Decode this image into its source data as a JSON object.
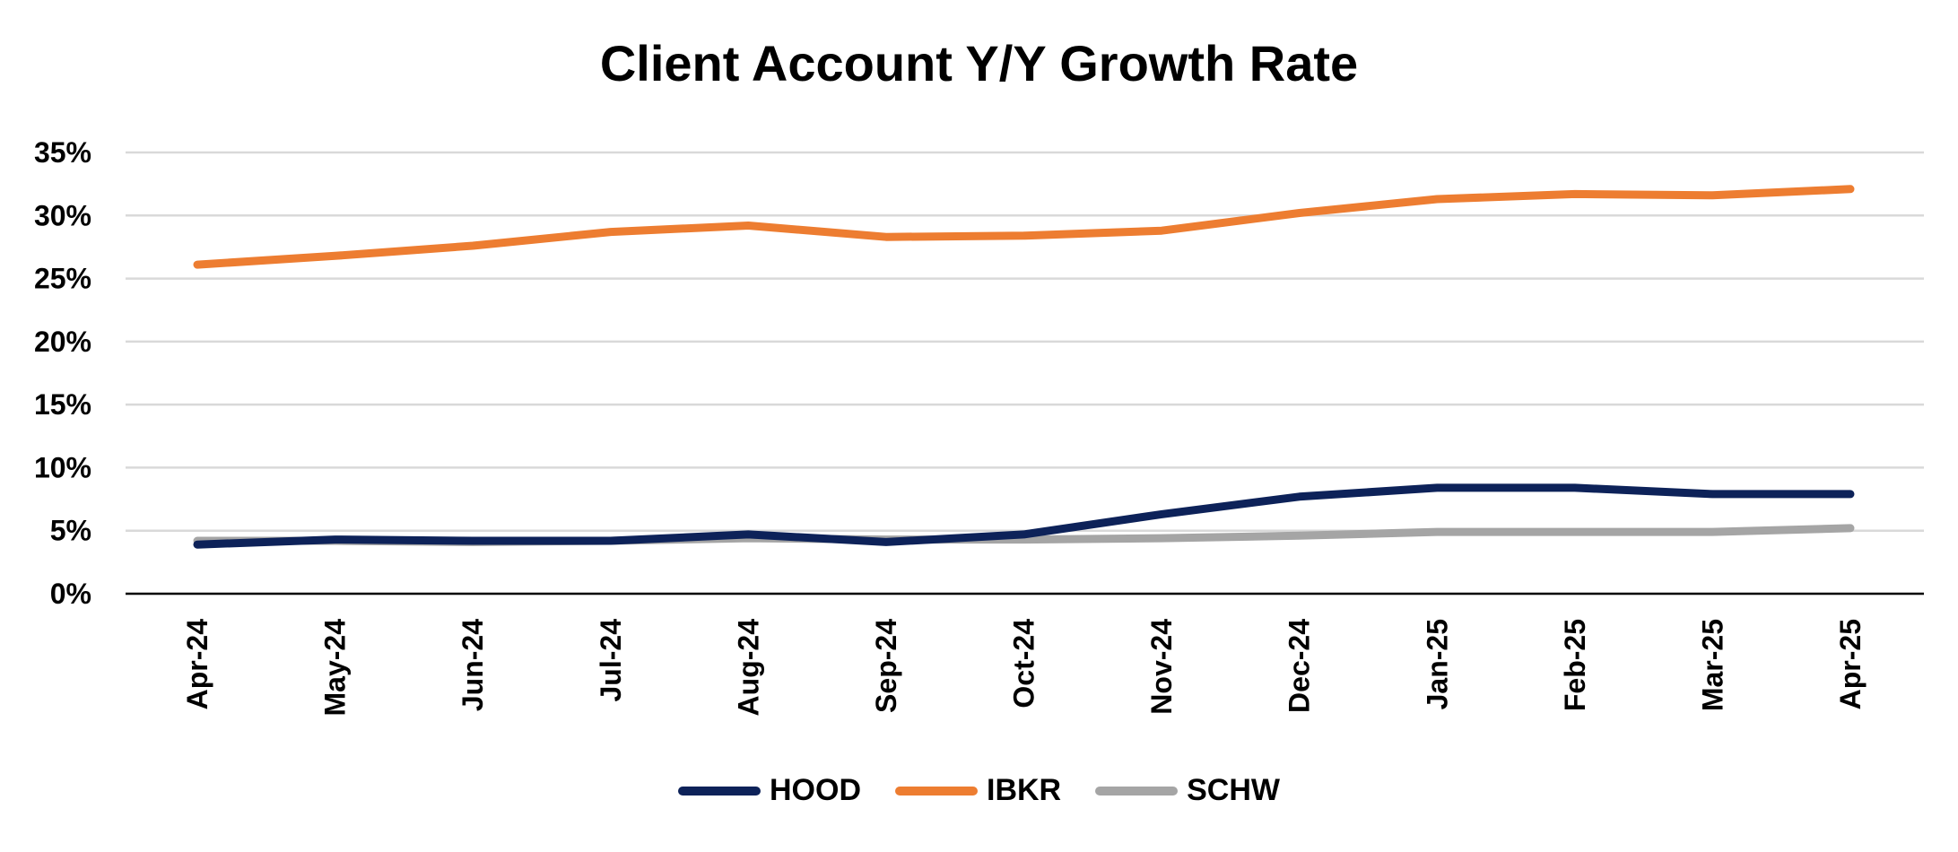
{
  "chart_data": {
    "type": "line",
    "title": "Client Account Y/Y Growth Rate",
    "xlabel": "",
    "ylabel": "",
    "ylim": [
      0,
      35
    ],
    "yticks": [
      0,
      5,
      10,
      15,
      20,
      25,
      30,
      35
    ],
    "ytick_labels": [
      "0%",
      "5%",
      "10%",
      "15%",
      "20%",
      "25%",
      "30%",
      "35%"
    ],
    "categories": [
      "Apr-24",
      "May-24",
      "Jun-24",
      "Jul-24",
      "Aug-24",
      "Sep-24",
      "Oct-24",
      "Nov-24",
      "Dec-24",
      "Jan-25",
      "Feb-25",
      "Mar-25",
      "Apr-25"
    ],
    "grid": true,
    "legend_position": "bottom",
    "series": [
      {
        "name": "HOOD",
        "color": "#0d2259",
        "values": [
          3.9,
          4.3,
          4.2,
          4.2,
          4.7,
          4.1,
          4.7,
          6.3,
          7.7,
          8.4,
          8.4,
          7.9,
          7.9
        ]
      },
      {
        "name": "IBKR",
        "color": "#ed7d31",
        "values": [
          26.1,
          26.8,
          27.6,
          28.7,
          29.2,
          28.3,
          28.4,
          28.8,
          30.2,
          31.3,
          31.7,
          31.6,
          32.1
        ]
      },
      {
        "name": "SCHW",
        "color": "#a5a5a5",
        "values": [
          4.2,
          4.2,
          4.1,
          4.2,
          4.4,
          4.3,
          4.3,
          4.4,
          4.6,
          4.9,
          4.9,
          4.9,
          5.2
        ]
      }
    ]
  }
}
